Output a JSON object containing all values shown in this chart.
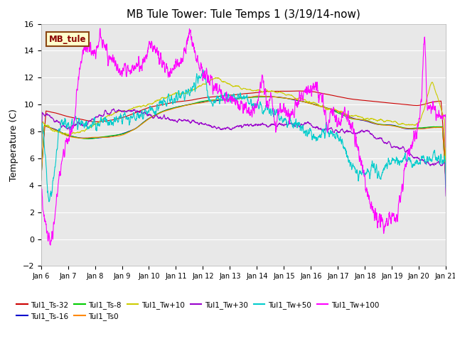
{
  "title": "MB Tule Tower: Tule Temps 1 (3/19/14-now)",
  "ylabel": "Temperature (C)",
  "xlim": [
    0,
    15
  ],
  "ylim": [
    -2,
    16
  ],
  "yticks": [
    -2,
    0,
    2,
    4,
    6,
    8,
    10,
    12,
    14,
    16
  ],
  "xtick_labels": [
    "Jan 6",
    "Jan 7",
    "Jan 8",
    "Jan 9",
    "Jan 10",
    "Jan 11",
    "Jan 12",
    "Jan 13",
    "Jan 14",
    "Jan 15",
    "Jan 16",
    "Jan 17",
    "Jan 18",
    "Jan 19",
    "Jan 20",
    "Jan 21"
  ],
  "series_names": [
    "Tul1_Ts-32",
    "Tul1_Ts-16",
    "Tul1_Ts-8",
    "Tul1_Ts0",
    "Tul1_Tw+10",
    "Tul1_Tw+30",
    "Tul1_Tw+50",
    "Tul1_Tw+100"
  ],
  "series_colors": [
    "#cc0000",
    "#0000cc",
    "#00cc00",
    "#ff8800",
    "#cccc00",
    "#9900cc",
    "#00cccc",
    "#ff00ff"
  ],
  "background_color": "#ffffff",
  "plot_bg_color": "#e8e8e8",
  "grid_color": "#ffffff",
  "title_fontsize": 11,
  "axis_fontsize": 9,
  "tick_fontsize": 8,
  "legend_label": "MB_tule",
  "legend_box_color": "#ffffcc",
  "legend_box_edge": "#8B4513",
  "legend_text_color": "#8B0000"
}
